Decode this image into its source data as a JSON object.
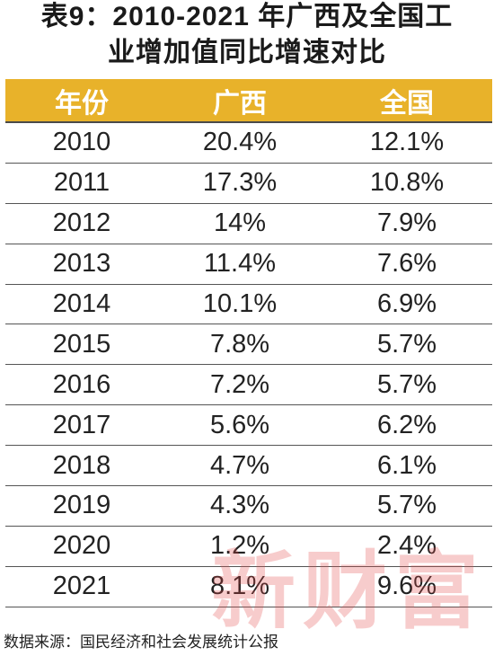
{
  "title": {
    "line1": "表9：2010-2021 年广西及全国工",
    "line2": "业增加值同比增速对比"
  },
  "chart_data": {
    "type": "table",
    "columns": [
      "年份",
      "广西",
      "全国"
    ],
    "rows": [
      [
        "2010",
        "20.4%",
        "12.1%"
      ],
      [
        "2011",
        "17.3%",
        "10.8%"
      ],
      [
        "2012",
        "14%",
        "7.9%"
      ],
      [
        "2013",
        "11.4%",
        "7.6%"
      ],
      [
        "2014",
        "10.1%",
        "6.9%"
      ],
      [
        "2015",
        "7.8%",
        "5.7%"
      ],
      [
        "2016",
        "7.2%",
        "5.7%"
      ],
      [
        "2017",
        "5.6%",
        "6.2%"
      ],
      [
        "2018",
        "4.7%",
        "6.1%"
      ],
      [
        "2019",
        "4.3%",
        "5.7%"
      ],
      [
        "2020",
        "1.2%",
        "2.4%"
      ],
      [
        "2021",
        "8.1%",
        "9.6%"
      ]
    ]
  },
  "source": "数据来源：国民经济和社会发展统计公报",
  "watermark": "新财富",
  "colors": {
    "header_bg": "#e8b22a",
    "header_text": "#ffffff",
    "watermark": "#e34b4b"
  }
}
